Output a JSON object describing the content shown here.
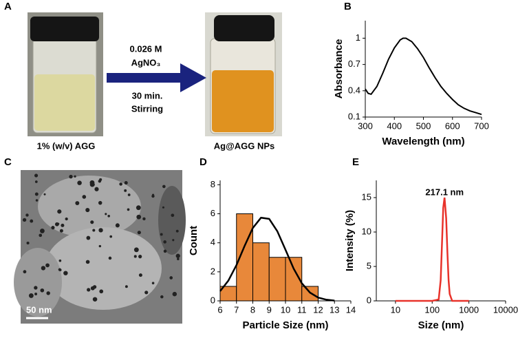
{
  "panel_a": {
    "label": "A",
    "reagent": "0.026 M",
    "reagent_name": "AgNO₃",
    "time": "30 min.",
    "process": "Stirring",
    "start_label": "1% (w/v) AGG",
    "end_label": "Ag@AGG NPs"
  },
  "panel_c": {
    "label": "C",
    "scale_bar": "50 nm"
  },
  "chart_data": [
    {
      "type": "line",
      "label": "B",
      "x_label": "Wavelength (nm)",
      "y_label": "Absorbance",
      "x": [
        300,
        310,
        320,
        340,
        360,
        380,
        400,
        420,
        430,
        440,
        460,
        480,
        500,
        520,
        540,
        560,
        580,
        600,
        620,
        640,
        660,
        680,
        700
      ],
      "series": [
        {
          "color": "#000000",
          "values": [
            0.42,
            0.37,
            0.36,
            0.45,
            0.6,
            0.76,
            0.89,
            0.98,
            1.0,
            1.0,
            0.96,
            0.88,
            0.78,
            0.66,
            0.55,
            0.45,
            0.37,
            0.3,
            0.24,
            0.2,
            0.17,
            0.15,
            0.13
          ]
        }
      ],
      "xlim": [
        300,
        700
      ],
      "xticks": [
        300,
        400,
        500,
        600,
        700
      ],
      "ylim": [
        0.1,
        1.2
      ],
      "yticks": [
        0.1,
        0.4,
        0.7,
        1
      ]
    },
    {
      "type": "histogram",
      "label": "D",
      "x_label": "Particle Size (nm)",
      "y_label": "Count",
      "bins": [
        6,
        7,
        8,
        9,
        10,
        11,
        12
      ],
      "values": [
        1,
        6,
        4,
        3,
        3,
        1
      ],
      "color": "#e8883a",
      "fit": {
        "color": "#000000",
        "x": [
          6,
          6.5,
          7,
          7.5,
          8,
          8.5,
          9,
          9.5,
          10,
          10.5,
          11,
          11.5,
          12,
          12.5,
          13
        ],
        "values": [
          0.67,
          1.39,
          2.47,
          3.79,
          5.02,
          5.73,
          5.65,
          4.8,
          3.52,
          2.22,
          1.21,
          0.57,
          0.23,
          0.08,
          0.02
        ]
      },
      "xlim": [
        6,
        14
      ],
      "xticks": [
        6,
        7,
        8,
        9,
        10,
        11,
        12,
        13,
        14
      ],
      "ylim": [
        0,
        8.3
      ],
      "yticks": [
        0,
        2,
        4,
        6,
        8
      ]
    },
    {
      "type": "line",
      "label": "E",
      "x_label": "Size (nm)",
      "y_label": "Intensity (%)",
      "x_log": true,
      "annotation": "217.1 nm",
      "annotation_x": 217.1,
      "x": [
        10,
        50,
        100,
        150,
        170,
        190,
        200,
        217.1,
        240,
        260,
        280,
        300,
        350,
        1000
      ],
      "series": [
        {
          "color": "#e8322a",
          "values": [
            0,
            0,
            0,
            0.2,
            3,
            10,
            13.5,
            15,
            12,
            7,
            3,
            1,
            0,
            0
          ]
        }
      ],
      "xlim": [
        3,
        10000
      ],
      "xticks": [
        10,
        100,
        1000,
        10000
      ],
      "ylim": [
        0,
        17.5
      ],
      "yticks": [
        0,
        5,
        10,
        15
      ]
    }
  ]
}
